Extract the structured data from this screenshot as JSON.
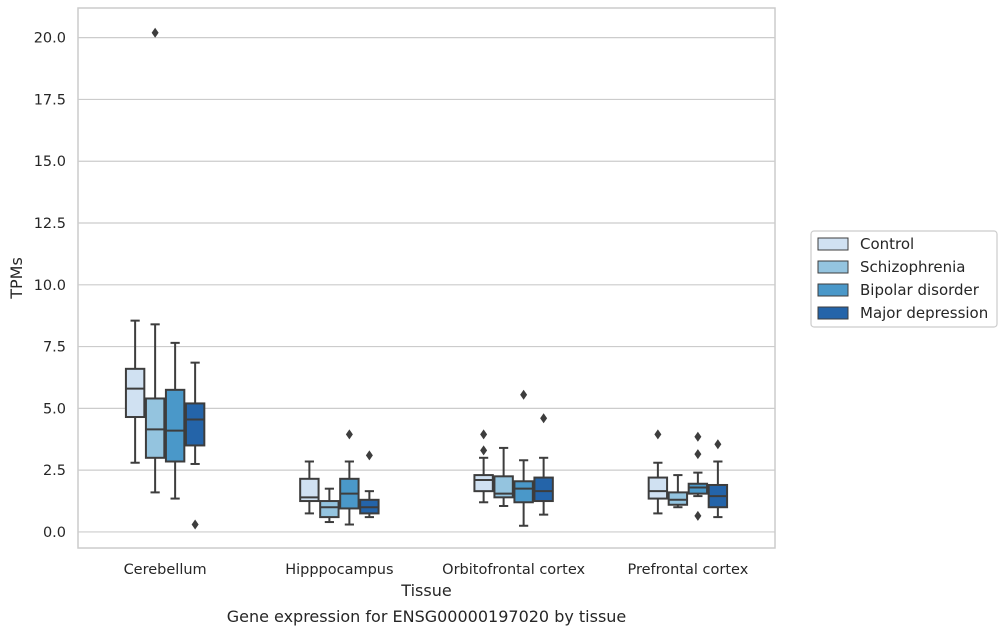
{
  "chart_data": {
    "type": "box",
    "caption": "Gene expression for ENSG00000197020 by tissue",
    "xlabel": "Tissue",
    "ylabel": "TPMs",
    "ylim": [
      -0.65,
      21.2
    ],
    "yticks": [
      0.0,
      2.5,
      5.0,
      7.5,
      10.0,
      12.5,
      15.0,
      17.5,
      20.0
    ],
    "ytick_labels": [
      "0.0",
      "2.5",
      "5.0",
      "7.5",
      "10.0",
      "12.5",
      "15.0",
      "17.5",
      "20.0"
    ],
    "grid": "horizontal",
    "legend_placement": "right",
    "categories": [
      "Cerebellum",
      "Hipppocampus",
      "Orbitofrontal cortex",
      "Prefrontal cortex"
    ],
    "series": [
      {
        "name": "Control",
        "color": "#d0e1f2",
        "boxes": [
          {
            "whislo": 2.8,
            "q1": 4.65,
            "med": 5.8,
            "q3": 6.6,
            "whishi": 8.55,
            "fliers": []
          },
          {
            "whislo": 0.75,
            "q1": 1.25,
            "med": 1.4,
            "q3": 2.15,
            "whishi": 2.85,
            "fliers": []
          },
          {
            "whislo": 1.2,
            "q1": 1.65,
            "med": 2.1,
            "q3": 2.3,
            "whishi": 3.0,
            "fliers": [
              3.3,
              3.95
            ]
          },
          {
            "whislo": 0.75,
            "q1": 1.35,
            "med": 1.65,
            "q3": 2.2,
            "whishi": 2.8,
            "fliers": [
              3.95
            ]
          }
        ]
      },
      {
        "name": "Schizophrenia",
        "color": "#94c4df",
        "boxes": [
          {
            "whislo": 1.6,
            "q1": 3.0,
            "med": 4.15,
            "q3": 5.4,
            "whishi": 8.4,
            "fliers": [
              20.2
            ]
          },
          {
            "whislo": 0.4,
            "q1": 0.6,
            "med": 1.0,
            "q3": 1.25,
            "whishi": 1.75,
            "fliers": []
          },
          {
            "whislo": 1.05,
            "q1": 1.4,
            "med": 1.55,
            "q3": 2.25,
            "whishi": 3.4,
            "fliers": []
          },
          {
            "whislo": 1.0,
            "q1": 1.1,
            "med": 1.3,
            "q3": 1.6,
            "whishi": 2.3,
            "fliers": []
          }
        ]
      },
      {
        "name": "Bipolar disorder",
        "color": "#4a98c9",
        "boxes": [
          {
            "whislo": 1.35,
            "q1": 2.85,
            "med": 4.1,
            "q3": 5.75,
            "whishi": 7.65,
            "fliers": []
          },
          {
            "whislo": 0.3,
            "q1": 0.95,
            "med": 1.55,
            "q3": 2.15,
            "whishi": 2.85,
            "fliers": [
              3.95
            ]
          },
          {
            "whislo": 0.25,
            "q1": 1.2,
            "med": 1.75,
            "q3": 2.05,
            "whishi": 2.9,
            "fliers": [
              5.55
            ]
          },
          {
            "whislo": 1.45,
            "q1": 1.55,
            "med": 1.8,
            "q3": 1.95,
            "whishi": 2.4,
            "fliers": [
              0.65,
              3.15,
              3.85
            ]
          }
        ]
      },
      {
        "name": "Major depression",
        "color": "#2464a9",
        "boxes": [
          {
            "whislo": 2.75,
            "q1": 3.5,
            "med": 4.55,
            "q3": 5.2,
            "whishi": 6.85,
            "fliers": [
              0.3
            ]
          },
          {
            "whislo": 0.6,
            "q1": 0.75,
            "med": 1.0,
            "q3": 1.3,
            "whishi": 1.65,
            "fliers": [
              3.1
            ]
          },
          {
            "whislo": 0.7,
            "q1": 1.25,
            "med": 1.65,
            "q3": 2.2,
            "whishi": 3.0,
            "fliers": [
              4.6
            ]
          },
          {
            "whislo": 0.6,
            "q1": 1.0,
            "med": 1.45,
            "q3": 1.9,
            "whishi": 2.85,
            "fliers": [
              3.55
            ]
          }
        ]
      }
    ]
  }
}
